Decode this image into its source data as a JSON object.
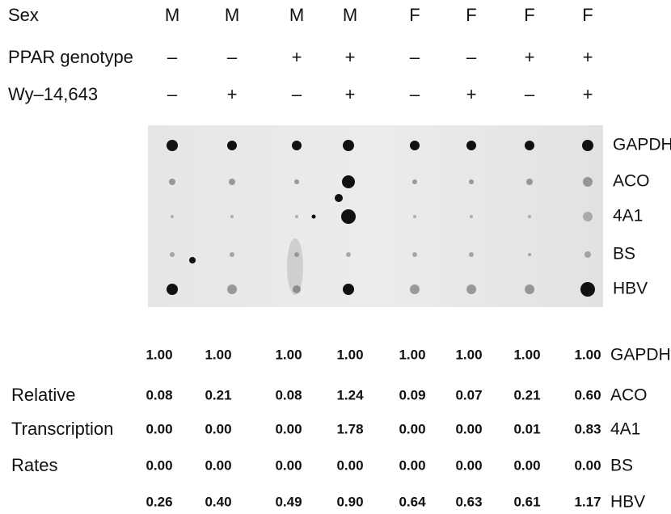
{
  "header": {
    "rows": [
      {
        "label": "Sex",
        "values": [
          "M",
          "M",
          "M",
          "M",
          "F",
          "F",
          "F",
          "F"
        ]
      },
      {
        "label": "PPAR genotype",
        "values": [
          "–",
          "–",
          "+",
          "+",
          "–",
          "–",
          "+",
          "+"
        ]
      },
      {
        "label": "Wy–14,643",
        "values": [
          "–",
          "+",
          "–",
          "+",
          "–",
          "+",
          "–",
          "+"
        ]
      }
    ]
  },
  "blot": {
    "genes": [
      "GAPDH",
      "ACO",
      "4A1",
      "BS",
      "HBV"
    ]
  },
  "table": {
    "rows": [
      {
        "gene": "GAPDH",
        "values": [
          "1.00",
          "1.00",
          "1.00",
          "1.00",
          "1.00",
          "1.00",
          "1.00",
          "1.00"
        ]
      },
      {
        "label": "Relative",
        "gene": "ACO",
        "values": [
          "0.08",
          "0.21",
          "0.08",
          "1.24",
          "0.09",
          "0.07",
          "0.21",
          "0.60"
        ]
      },
      {
        "label": "Transcription",
        "gene": "4A1",
        "values": [
          "0.00",
          "0.00",
          "0.00",
          "1.78",
          "0.00",
          "0.00",
          "0.01",
          "0.83"
        ]
      },
      {
        "label": "Rates",
        "gene": "BS",
        "values": [
          "0.00",
          "0.00",
          "0.00",
          "0.00",
          "0.00",
          "0.00",
          "0.00",
          "0.00"
        ]
      },
      {
        "gene": "HBV",
        "values": [
          "0.26",
          "0.40",
          "0.49",
          "0.90",
          "0.64",
          "0.63",
          "0.61",
          "1.17"
        ]
      }
    ]
  }
}
